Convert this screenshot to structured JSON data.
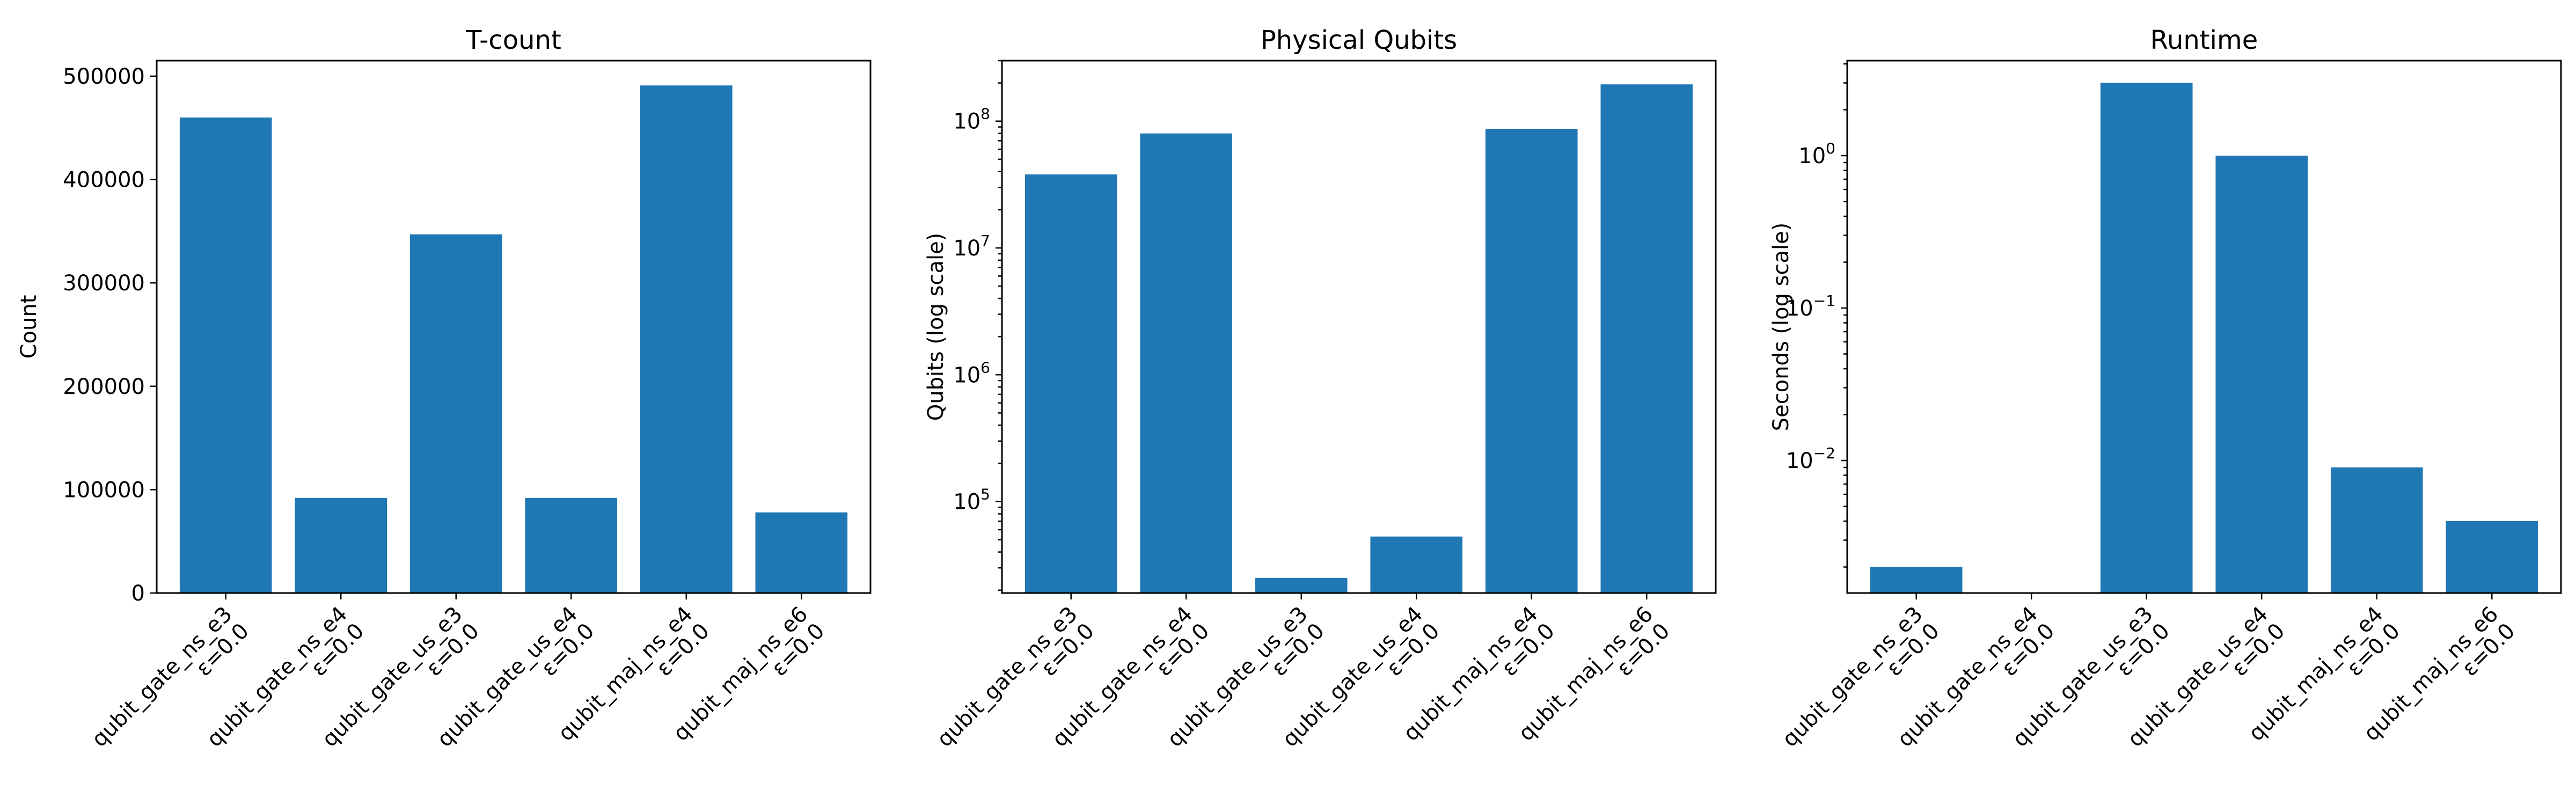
{
  "chart_data": [
    {
      "type": "bar",
      "title": "T-count",
      "xlabel": "",
      "ylabel": "Count",
      "scale": "linear",
      "ylim": [
        0,
        515000
      ],
      "yticks": [
        0,
        100000,
        200000,
        300000,
        400000,
        500000
      ],
      "ytick_labels": [
        "0",
        "100000",
        "200000",
        "300000",
        "400000",
        "500000"
      ],
      "categories": [
        [
          "qubit_gate_ns_e3",
          "ε=0.0"
        ],
        [
          "qubit_gate_ns_e4",
          "ε=0.0"
        ],
        [
          "qubit_gate_us_e3",
          "ε=0.0"
        ],
        [
          "qubit_gate_us_e4",
          "ε=0.0"
        ],
        [
          "qubit_maj_ns_e4",
          "ε=0.0"
        ],
        [
          "qubit_maj_ns_e6",
          "ε=0.0"
        ]
      ],
      "values": [
        460000,
        92000,
        347000,
        92000,
        491000,
        78000
      ],
      "color": "#1f77b4",
      "grid": false
    },
    {
      "type": "bar",
      "title": "Physical Qubits",
      "xlabel": "",
      "ylabel": "Qubits (log scale)",
      "scale": "log",
      "ylim": [
        19000,
        300000000
      ],
      "yticks": [
        100000,
        1000000,
        10000000,
        100000000
      ],
      "ytick_labels": [
        [
          "10",
          "5"
        ],
        [
          "10",
          "6"
        ],
        [
          "10",
          "7"
        ],
        [
          "10",
          "8"
        ]
      ],
      "categories": [
        [
          "qubit_gate_ns_e3",
          "ε=0.0"
        ],
        [
          "qubit_gate_ns_e4",
          "ε=0.0"
        ],
        [
          "qubit_gate_us_e3",
          "ε=0.0"
        ],
        [
          "qubit_gate_us_e4",
          "ε=0.0"
        ],
        [
          "qubit_maj_ns_e4",
          "ε=0.0"
        ],
        [
          "qubit_maj_ns_e6",
          "ε=0.0"
        ]
      ],
      "values": [
        38000000,
        80000000,
        25000,
        53000,
        87000000,
        195000000
      ],
      "color": "#1f77b4",
      "grid": false
    },
    {
      "type": "bar",
      "title": "Runtime",
      "xlabel": "",
      "ylabel": "Seconds (log scale)",
      "scale": "log",
      "ylim": [
        0.00135,
        4.2
      ],
      "yticks": [
        0.01,
        0.1,
        1
      ],
      "ytick_labels": [
        [
          "10",
          "−2"
        ],
        [
          "10",
          "−1"
        ],
        [
          "10",
          "0"
        ]
      ],
      "categories": [
        [
          "qubit_gate_ns_e3",
          "ε=0.0"
        ],
        [
          "qubit_gate_ns_e4",
          "ε=0.0"
        ],
        [
          "qubit_gate_us_e3",
          "ε=0.0"
        ],
        [
          "qubit_gate_us_e4",
          "ε=0.0"
        ],
        [
          "qubit_maj_ns_e4",
          "ε=0.0"
        ],
        [
          "qubit_maj_ns_e6",
          "ε=0.0"
        ]
      ],
      "values": [
        0.002,
        0.0012,
        3.0,
        1.0,
        0.009,
        0.004
      ],
      "color": "#1f77b4",
      "grid": false
    }
  ]
}
